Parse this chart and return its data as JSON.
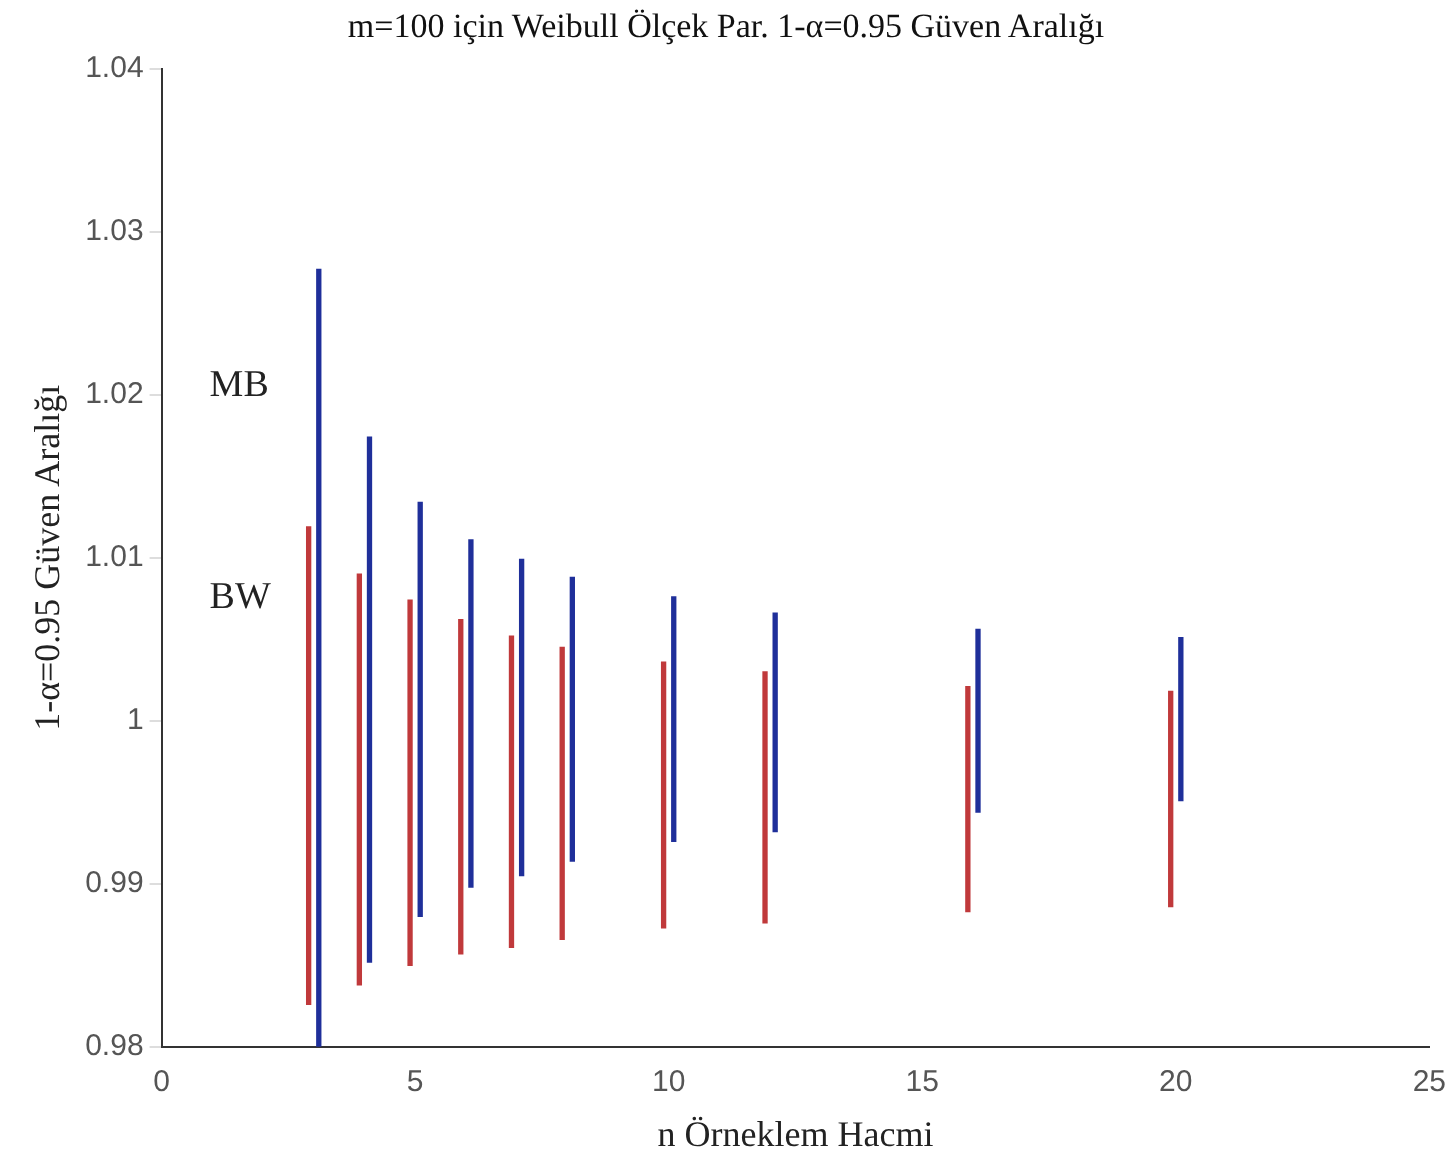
{
  "chart_data": {
    "type": "bar",
    "title": "m=100 için Weibull Ölçek Par. 1-α=0.95 Güven Aralığı",
    "xlabel": "n Örneklem Hacmi",
    "ylabel": "1-α=0.95 Güven Aralığı",
    "xlim": [
      0,
      25
    ],
    "xticks": [
      0,
      5,
      10,
      15,
      20,
      25
    ],
    "ylim": [
      0.98,
      1.04
    ],
    "yticks": [
      0.98,
      0.99,
      1,
      1.01,
      1.02,
      1.03,
      1.04
    ],
    "grid": false,
    "legend": "left",
    "series": [
      {
        "name": "BW",
        "color": "#c0393b",
        "x": [
          2.9,
          3.9,
          4.9,
          5.9,
          6.9,
          7.9,
          9.9,
          11.9,
          15.9,
          19.9
        ],
        "base": [
          0.9826,
          0.9838,
          0.985,
          0.9857,
          0.9861,
          0.9866,
          0.9873,
          0.9876,
          0.9883,
          0.9886
        ],
        "values": [
          0.0293,
          0.0252,
          0.0224,
          0.0205,
          0.0191,
          0.0179,
          0.0163,
          0.0154,
          0.0138,
          0.0132
        ]
      },
      {
        "name": "MB",
        "color": "#1f2f9a",
        "x": [
          3.1,
          4.1,
          5.1,
          6.1,
          7.1,
          8.1,
          10.1,
          12.1,
          16.1,
          20.1
        ],
        "base": [
          0.98,
          0.9852,
          0.988,
          0.9898,
          0.9905,
          0.9914,
          0.9926,
          0.9932,
          0.9944,
          0.9951
        ],
        "values": [
          0.0477,
          0.0322,
          0.0254,
          0.0213,
          0.0194,
          0.0174,
          0.015,
          0.0134,
          0.0112,
          0.01
        ]
      }
    ]
  }
}
